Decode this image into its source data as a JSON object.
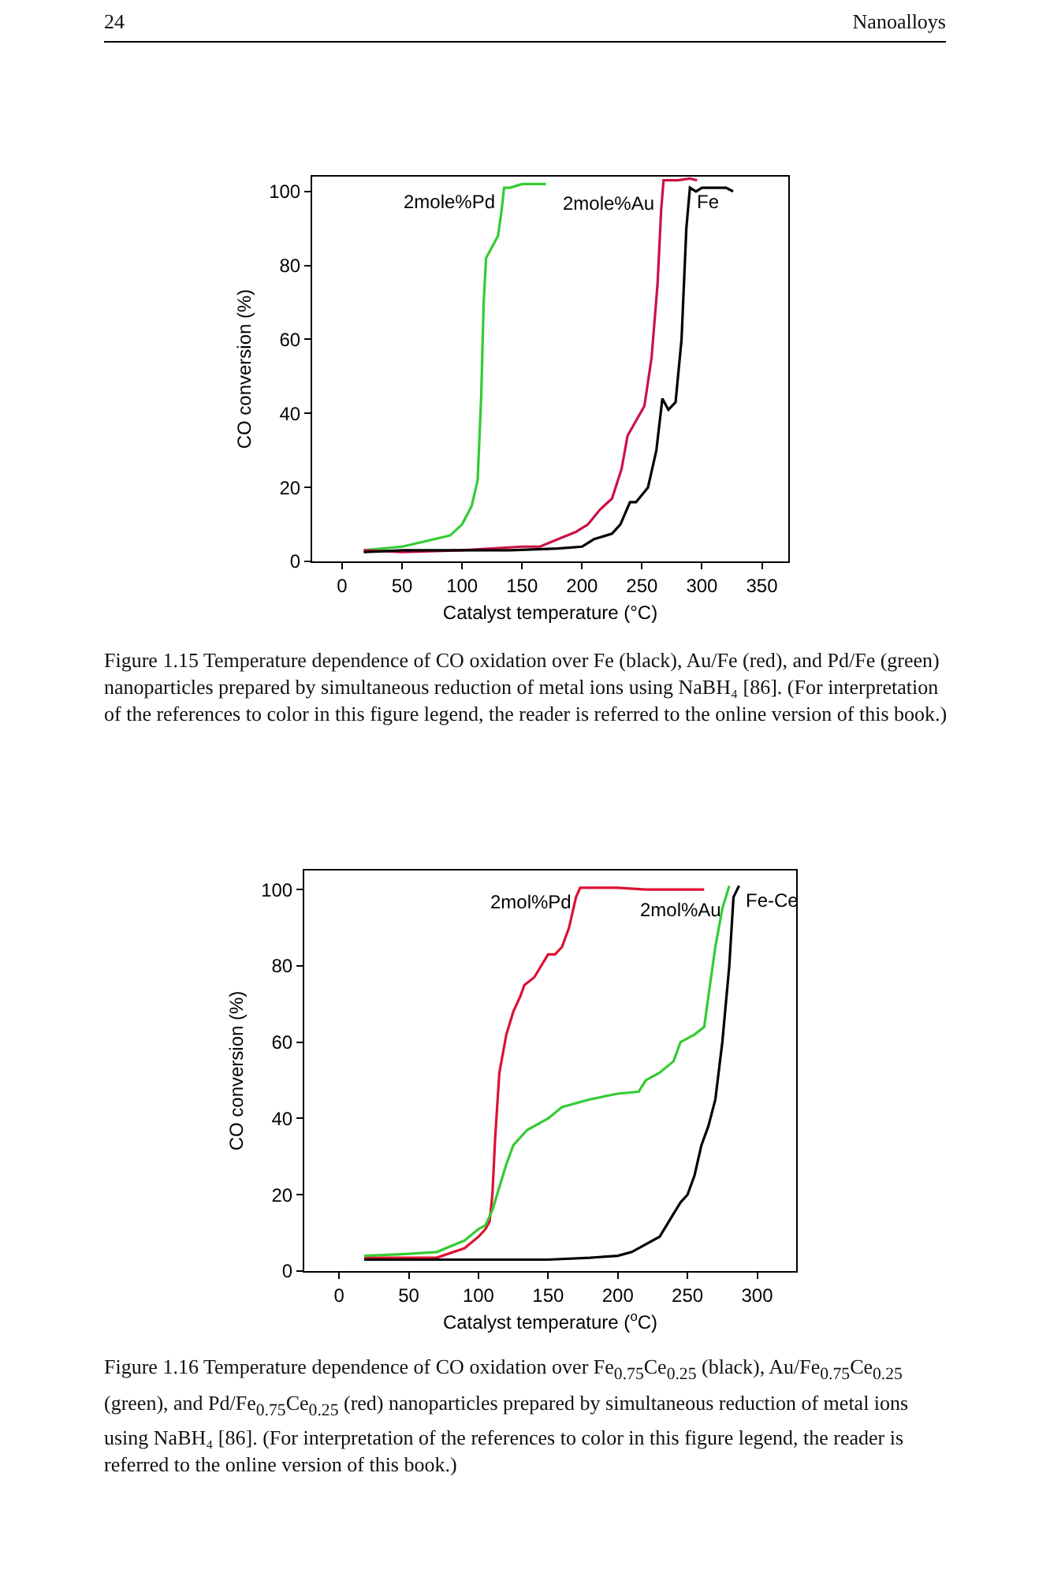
{
  "chart_data": [
    {
      "type": "line",
      "xlabel": "Catalyst temperature (°C)",
      "ylabel": "CO conversion (%)",
      "annotations": [
        "24",
        "Nanoalloys",
        "Figure 1.15  Temperature dependence of CO oxidation over Fe (black), Au/Fe (red), and Pd/Fe (green) nanoparticles prepared by simultaneous reduction of metal ions using NaBH₄ [86]. (For interpretation of the references to color in this figure legend, the reader is referred to the online version of this book.)"
      ],
      "xlim": [
        -25,
        372
      ],
      "xticks": [
        0,
        50,
        100,
        150,
        200,
        250,
        300,
        350
      ],
      "ylim": [
        0,
        104
      ],
      "yticks": [
        0,
        20,
        40,
        60,
        80,
        100
      ],
      "series": [
        {
          "name": "2mole%Pd",
          "color": "#33cc33",
          "x": [
            18,
            50,
            70,
            90,
            100,
            108,
            113,
            116,
            118,
            120,
            125,
            130,
            133,
            135,
            140,
            150,
            160,
            170
          ],
          "values": [
            3,
            4,
            5.5,
            7,
            10,
            15,
            22,
            45,
            70,
            82,
            85,
            88,
            95,
            101,
            101,
            102,
            102,
            102
          ]
        },
        {
          "name": "2mole%Au",
          "color": "#cc1144",
          "x": [
            18,
            50,
            100,
            150,
            165,
            180,
            195,
            205,
            215,
            225,
            233,
            238,
            245,
            252,
            258,
            263,
            266,
            268,
            280,
            290,
            296
          ],
          "values": [
            3,
            2.5,
            3,
            4,
            4,
            6,
            8,
            10,
            14,
            17,
            25,
            34,
            38,
            42,
            55,
            75,
            95,
            103,
            103,
            103.5,
            103
          ]
        },
        {
          "name": "Fe",
          "color": "#000000",
          "x": [
            18,
            50,
            100,
            140,
            180,
            200,
            210,
            225,
            232,
            240,
            245,
            255,
            262,
            267,
            272,
            278,
            283,
            287,
            290,
            295,
            300,
            310,
            320,
            326
          ],
          "values": [
            2.5,
            3,
            3,
            3,
            3.5,
            4,
            6,
            7.5,
            10,
            16,
            16,
            20,
            30,
            44,
            41,
            43,
            60,
            90,
            101,
            100,
            101,
            101,
            101,
            100
          ]
        }
      ]
    },
    {
      "type": "line",
      "xlabel": "Catalyst temperature ($^{o}$C)",
      "ylabel": "CO conversion (%)",
      "annotations": [
        "Figure 1.16  Temperature dependence of CO oxidation over Fe$_{0.75}$Ce$_{0.25}$ (black), Au/Fe$_{0.75}$Ce$_{0.25}$ (green), and Pd/Fe$_{0.75}$Ce$_{0.25}$ (red) nanoparticles prepared by simultaneous reduction of metal ions using NaBH₄ [86]. (For interpretation of the references to color in this figure legend, the reader is referred to the online version of this book.)"
      ],
      "xlim": [
        -25,
        328
      ],
      "xticks": [
        0,
        50,
        100,
        150,
        200,
        250,
        300
      ],
      "ylim": [
        0,
        105
      ],
      "yticks": [
        0,
        20,
        40,
        60,
        80,
        100
      ],
      "series": [
        {
          "name": "2mol%Pd",
          "color": "#dd1133",
          "x": [
            18,
            50,
            70,
            90,
            100,
            105,
            108,
            110,
            112,
            115,
            120,
            125,
            130,
            133,
            140,
            145,
            150,
            155,
            160,
            165,
            170,
            173,
            180,
            200,
            220,
            240,
            262
          ],
          "values": [
            3.5,
            3.5,
            3.5,
            6,
            9,
            11,
            13,
            20,
            35,
            52,
            62,
            68,
            72,
            75,
            77,
            80,
            83,
            83,
            85,
            90,
            98,
            100.5,
            100.5,
            100.5,
            100,
            100,
            100
          ]
        },
        {
          "name": "2mol%Au",
          "color": "#33cc33",
          "x": [
            18,
            50,
            70,
            90,
            100,
            105,
            110,
            115,
            120,
            125,
            135,
            150,
            160,
            180,
            200,
            215,
            220,
            230,
            240,
            245,
            255,
            262,
            265,
            270,
            275,
            280
          ],
          "values": [
            4,
            4.5,
            5,
            8,
            11,
            12,
            16,
            22,
            28,
            33,
            37,
            40,
            43,
            45,
            46.5,
            47,
            50,
            52,
            55,
            60,
            62,
            64,
            72,
            85,
            95,
            101
          ]
        },
        {
          "name": "Fe-Ce",
          "color": "#000000",
          "x": [
            18,
            50,
            100,
            150,
            180,
            200,
            210,
            220,
            230,
            240,
            245,
            250,
            255,
            260,
            265,
            270,
            275,
            280,
            283,
            287
          ],
          "values": [
            3,
            3,
            3,
            3,
            3.5,
            4,
            5,
            7,
            9,
            15,
            18,
            20,
            25,
            33,
            38,
            45,
            60,
            80,
            98,
            101
          ]
        }
      ]
    }
  ]
}
